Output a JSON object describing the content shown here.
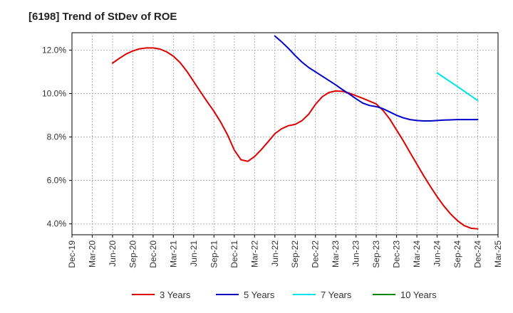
{
  "chart_data": {
    "type": "line",
    "title": "[6198]  Trend of StDev of ROE",
    "xlabel": "",
    "ylabel": "",
    "x_ticks": [
      "Dec-19",
      "Mar-20",
      "Jun-20",
      "Sep-20",
      "Dec-20",
      "Mar-21",
      "Jun-21",
      "Sep-21",
      "Dec-21",
      "Mar-22",
      "Jun-22",
      "Sep-22",
      "Dec-22",
      "Mar-23",
      "Jun-23",
      "Sep-23",
      "Dec-23",
      "Mar-24",
      "Jun-24",
      "Sep-24",
      "Dec-24",
      "Mar-25"
    ],
    "y_ticks": [
      "4.0%",
      "6.0%",
      "8.0%",
      "10.0%",
      "12.0%"
    ],
    "y_tick_values": [
      4,
      6,
      8,
      10,
      12
    ],
    "ylim": [
      3.5,
      12.8
    ],
    "grid": true,
    "legend_position": "bottom",
    "series": [
      {
        "name": "3 Years",
        "color": "#dd0000",
        "points": [
          [
            "Jun-20",
            11.4
          ],
          [
            "Jul-20",
            11.62
          ],
          [
            "Aug-20",
            11.82
          ],
          [
            "Sep-20",
            11.96
          ],
          [
            "Oct-20",
            12.06
          ],
          [
            "Nov-20",
            12.1
          ],
          [
            "Dec-20",
            12.1
          ],
          [
            "Jan-21",
            12.05
          ],
          [
            "Feb-21",
            11.92
          ],
          [
            "Mar-21",
            11.72
          ],
          [
            "Apr-21",
            11.42
          ],
          [
            "May-21",
            11.02
          ],
          [
            "Jun-21",
            10.55
          ],
          [
            "Jul-21",
            10.08
          ],
          [
            "Aug-21",
            9.62
          ],
          [
            "Sep-21",
            9.18
          ],
          [
            "Oct-21",
            8.68
          ],
          [
            "Nov-21",
            8.1
          ],
          [
            "Dec-21",
            7.4
          ],
          [
            "Jan-22",
            6.95
          ],
          [
            "Feb-22",
            6.88
          ],
          [
            "Mar-22",
            7.1
          ],
          [
            "Apr-22",
            7.42
          ],
          [
            "May-22",
            7.78
          ],
          [
            "Jun-22",
            8.15
          ],
          [
            "Jul-22",
            8.38
          ],
          [
            "Aug-22",
            8.52
          ],
          [
            "Sep-22",
            8.58
          ],
          [
            "Oct-22",
            8.75
          ],
          [
            "Nov-22",
            9.05
          ],
          [
            "Dec-22",
            9.5
          ],
          [
            "Jan-23",
            9.85
          ],
          [
            "Feb-23",
            10.05
          ],
          [
            "Mar-23",
            10.12
          ],
          [
            "Apr-23",
            10.1
          ],
          [
            "May-23",
            10.02
          ],
          [
            "Jun-23",
            9.9
          ],
          [
            "Jul-23",
            9.78
          ],
          [
            "Aug-23",
            9.65
          ],
          [
            "Sep-23",
            9.52
          ],
          [
            "Oct-23",
            9.22
          ],
          [
            "Nov-23",
            8.82
          ],
          [
            "Dec-23",
            8.32
          ],
          [
            "Jan-24",
            7.82
          ],
          [
            "Feb-24",
            7.28
          ],
          [
            "Mar-24",
            6.75
          ],
          [
            "Apr-24",
            6.22
          ],
          [
            "May-24",
            5.72
          ],
          [
            "Jun-24",
            5.25
          ],
          [
            "Jul-24",
            4.82
          ],
          [
            "Aug-24",
            4.45
          ],
          [
            "Sep-24",
            4.15
          ],
          [
            "Oct-24",
            3.92
          ],
          [
            "Nov-24",
            3.8
          ],
          [
            "Dec-24",
            3.77
          ]
        ]
      },
      {
        "name": "5 Years",
        "color": "#0000cc",
        "points": [
          [
            "Jun-22",
            12.65
          ],
          [
            "Jul-22",
            12.38
          ],
          [
            "Aug-22",
            12.08
          ],
          [
            "Sep-22",
            11.75
          ],
          [
            "Oct-22",
            11.45
          ],
          [
            "Nov-22",
            11.2
          ],
          [
            "Dec-22",
            11.0
          ],
          [
            "Jan-23",
            10.8
          ],
          [
            "Feb-23",
            10.6
          ],
          [
            "Mar-23",
            10.4
          ],
          [
            "Apr-23",
            10.18
          ],
          [
            "May-23",
            9.98
          ],
          [
            "Jun-23",
            9.76
          ],
          [
            "Jul-23",
            9.56
          ],
          [
            "Aug-23",
            9.45
          ],
          [
            "Sep-23",
            9.4
          ],
          [
            "Oct-23",
            9.3
          ],
          [
            "Nov-23",
            9.15
          ],
          [
            "Dec-23",
            9.0
          ],
          [
            "Jan-24",
            8.88
          ],
          [
            "Feb-24",
            8.8
          ],
          [
            "Mar-24",
            8.76
          ],
          [
            "Apr-24",
            8.74
          ],
          [
            "May-24",
            8.74
          ],
          [
            "Jun-24",
            8.76
          ],
          [
            "Jul-24",
            8.78
          ],
          [
            "Aug-24",
            8.79
          ],
          [
            "Sep-24",
            8.8
          ],
          [
            "Oct-24",
            8.8
          ],
          [
            "Nov-24",
            8.8
          ],
          [
            "Dec-24",
            8.8
          ]
        ]
      },
      {
        "name": "7 Years",
        "color": "#00e5e5",
        "points": [
          [
            "Jun-24",
            10.95
          ],
          [
            "Sep-24",
            10.32
          ],
          [
            "Dec-24",
            9.68
          ]
        ]
      },
      {
        "name": "10 Years",
        "color": "#008800",
        "points": []
      }
    ]
  }
}
